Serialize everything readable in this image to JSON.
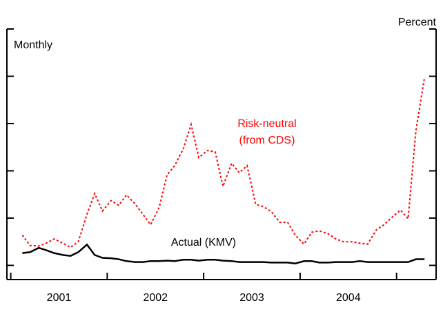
{
  "chart_data": {
    "type": "line",
    "unit_label": "Percent",
    "frequency_label": "Monthly",
    "xlim": [
      2000.96,
      2005.41
    ],
    "xticks": [
      2001,
      2002,
      2003,
      2004,
      2005
    ],
    "period_labels": [
      "2001",
      "2002",
      "2003",
      "2004"
    ],
    "ylim": [
      -0.3,
      5
    ],
    "yticks": [
      0,
      1,
      2,
      3,
      4,
      5
    ],
    "x": [
      2001.12,
      2001.2,
      2001.29,
      2001.37,
      2001.45,
      2001.54,
      2001.62,
      2001.7,
      2001.79,
      2001.87,
      2001.95,
      2002.04,
      2002.12,
      2002.2,
      2002.29,
      2002.37,
      2002.45,
      2002.54,
      2002.62,
      2002.7,
      2002.79,
      2002.87,
      2002.95,
      2003.04,
      2003.12,
      2003.2,
      2003.29,
      2003.37,
      2003.45,
      2003.54,
      2003.62,
      2003.7,
      2003.79,
      2003.87,
      2003.95,
      2004.04,
      2004.12,
      2004.2,
      2004.29,
      2004.37,
      2004.45,
      2004.54,
      2004.62,
      2004.7,
      2004.79,
      2004.87,
      2004.95,
      2005.04,
      2005.12,
      2005.2,
      2005.29
    ],
    "series": [
      {
        "label_lines": [
          "Risk-neutral",
          "(from CDS)"
        ],
        "color": "#ff0000",
        "dashed": true,
        "values": [
          0.64,
          0.42,
          0.41,
          0.47,
          0.56,
          0.47,
          0.38,
          0.5,
          1.08,
          1.52,
          1.15,
          1.37,
          1.27,
          1.49,
          1.3,
          1.08,
          0.86,
          1.23,
          1.91,
          2.11,
          2.47,
          2.98,
          2.28,
          2.43,
          2.4,
          1.67,
          2.16,
          1.96,
          2.11,
          1.29,
          1.24,
          1.14,
          0.91,
          0.91,
          0.64,
          0.45,
          0.7,
          0.73,
          0.67,
          0.56,
          0.5,
          0.5,
          0.47,
          0.45,
          0.75,
          0.86,
          1.01,
          1.17,
          0.99,
          2.84,
          3.98
        ]
      },
      {
        "label_lines": [
          "Actual (KMV)"
        ],
        "color": "#000000",
        "dashed": false,
        "values": [
          0.26,
          0.28,
          0.37,
          0.32,
          0.26,
          0.22,
          0.2,
          0.28,
          0.44,
          0.22,
          0.16,
          0.15,
          0.13,
          0.09,
          0.07,
          0.07,
          0.09,
          0.09,
          0.1,
          0.09,
          0.12,
          0.12,
          0.1,
          0.12,
          0.12,
          0.1,
          0.09,
          0.07,
          0.07,
          0.07,
          0.07,
          0.06,
          0.06,
          0.06,
          0.04,
          0.09,
          0.09,
          0.06,
          0.06,
          0.07,
          0.07,
          0.07,
          0.09,
          0.07,
          0.07,
          0.07,
          0.07,
          0.07,
          0.07,
          0.13,
          0.13
        ]
      }
    ]
  }
}
